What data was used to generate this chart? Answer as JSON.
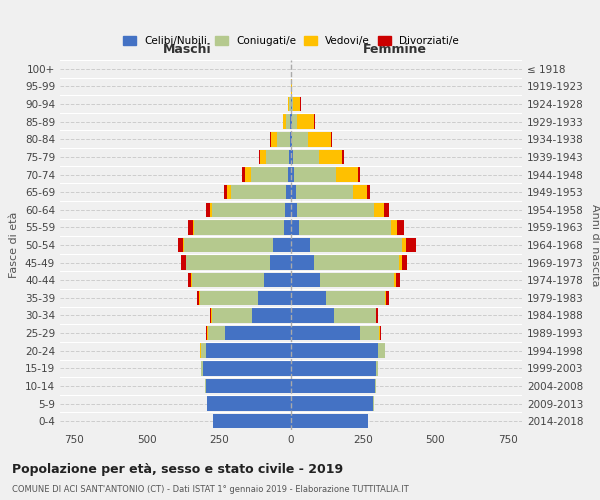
{
  "age_groups": [
    "0-4",
    "5-9",
    "10-14",
    "15-19",
    "20-24",
    "25-29",
    "30-34",
    "35-39",
    "40-44",
    "45-49",
    "50-54",
    "55-59",
    "60-64",
    "65-69",
    "70-74",
    "75-79",
    "80-84",
    "85-89",
    "90-94",
    "95-99",
    "100+"
  ],
  "birth_years": [
    "2014-2018",
    "2009-2013",
    "2004-2008",
    "1999-2003",
    "1994-1998",
    "1989-1993",
    "1984-1988",
    "1979-1983",
    "1974-1978",
    "1969-1973",
    "1964-1968",
    "1959-1963",
    "1954-1958",
    "1949-1953",
    "1944-1948",
    "1939-1943",
    "1934-1938",
    "1929-1933",
    "1924-1928",
    "1919-1923",
    "≤ 1918"
  ],
  "male": {
    "celibi": [
      270,
      290,
      295,
      305,
      295,
      230,
      135,
      115,
      95,
      72,
      62,
      25,
      22,
      18,
      12,
      8,
      5,
      3,
      1,
      0,
      0
    ],
    "coniugati": [
      0,
      1,
      2,
      5,
      18,
      58,
      140,
      200,
      248,
      290,
      308,
      310,
      250,
      190,
      128,
      78,
      45,
      15,
      5,
      0,
      0
    ],
    "vedovi": [
      0,
      0,
      0,
      1,
      1,
      2,
      2,
      2,
      2,
      3,
      5,
      5,
      10,
      15,
      20,
      20,
      18,
      8,
      3,
      0,
      0
    ],
    "divorziati": [
      0,
      0,
      0,
      1,
      1,
      3,
      5,
      8,
      12,
      15,
      18,
      15,
      12,
      10,
      8,
      5,
      3,
      1,
      1,
      0,
      0
    ]
  },
  "female": {
    "nubili": [
      265,
      285,
      290,
      295,
      300,
      240,
      148,
      122,
      102,
      80,
      65,
      28,
      22,
      18,
      12,
      8,
      5,
      3,
      2,
      0,
      0
    ],
    "coniugate": [
      0,
      1,
      3,
      8,
      25,
      65,
      145,
      205,
      255,
      295,
      318,
      318,
      265,
      195,
      145,
      90,
      55,
      18,
      5,
      0,
      0
    ],
    "vedove": [
      0,
      0,
      0,
      0,
      1,
      2,
      2,
      3,
      5,
      8,
      15,
      20,
      35,
      50,
      75,
      80,
      80,
      60,
      25,
      2,
      0
    ],
    "divorziate": [
      0,
      0,
      0,
      0,
      1,
      3,
      5,
      10,
      15,
      20,
      35,
      25,
      18,
      12,
      8,
      5,
      3,
      2,
      1,
      0,
      0
    ]
  },
  "colors": {
    "celibi_nubili": "#4472c4",
    "coniugati": "#b5c98e",
    "vedovi": "#ffc000",
    "divorziati": "#cc0000"
  },
  "xlim": 800,
  "title": "Popolazione per età, sesso e stato civile - 2019",
  "subtitle": "COMUNE DI ACI SANT'ANTONIO (CT) - Dati ISTAT 1° gennaio 2019 - Elaborazione TUTTITALIA.IT",
  "ylabel": "Fasce di età",
  "ylabel_right": "Anni di nascita",
  "xlabel_left": "Maschi",
  "xlabel_right": "Femmine",
  "bg_color": "#f0f0f0",
  "grid_color": "#cccccc"
}
